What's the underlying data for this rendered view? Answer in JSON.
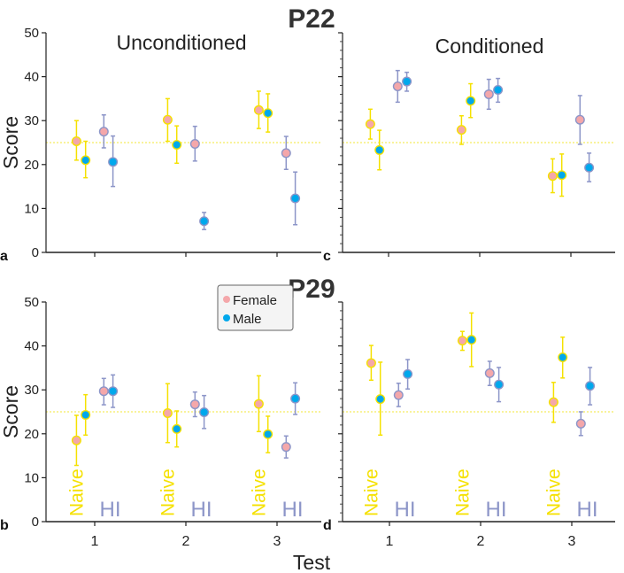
{
  "figure": {
    "row_titles": [
      "P22",
      "P29"
    ],
    "column_titles": [
      "Unconditioned",
      "Conditioned"
    ],
    "xlabel": "Test",
    "ylabel": "Score",
    "legend": [
      {
        "label": "Female",
        "color": "#f4a7aa"
      },
      {
        "label": "Male",
        "color": "#00a8ec"
      }
    ],
    "group_labels": [
      "Naive",
      "HI"
    ],
    "colors": {
      "naive": "#f5e100",
      "hi": "#8c95c8",
      "female": "#f4a7aa",
      "male": "#00a8ec",
      "chance_line": "#f7ef7a"
    }
  },
  "chart_data": [
    {
      "panel": "a",
      "type": "scatter",
      "row": "P22",
      "condition": "Unconditioned",
      "x_categories": [
        "1",
        "2",
        "3"
      ],
      "ylim": [
        0,
        50
      ],
      "yticks": [
        0,
        10,
        20,
        30,
        40,
        50
      ],
      "reference_line": 25,
      "error_bars": true,
      "series": [
        {
          "group": "Naive",
          "sex": "Female",
          "mean": [
            25.3,
            30.2,
            32.4
          ],
          "lo": [
            21.0,
            25.3,
            28.2
          ],
          "hi": [
            30.0,
            35.0,
            36.7
          ]
        },
        {
          "group": "Naive",
          "sex": "Male",
          "mean": [
            21.0,
            24.5,
            31.7
          ],
          "lo": [
            17.0,
            20.3,
            27.4
          ],
          "hi": [
            25.3,
            28.8,
            36.1
          ]
        },
        {
          "group": "HI",
          "sex": "Female",
          "mean": [
            27.5,
            24.7,
            22.6
          ],
          "lo": [
            23.8,
            20.8,
            18.9
          ],
          "hi": [
            31.3,
            28.7,
            26.4
          ]
        },
        {
          "group": "HI",
          "sex": "Male",
          "mean": [
            20.6,
            7.1,
            12.3
          ],
          "lo": [
            15.0,
            5.2,
            6.3
          ],
          "hi": [
            26.5,
            9.1,
            18.3
          ]
        }
      ]
    },
    {
      "panel": "c",
      "type": "scatter",
      "row": "P22",
      "condition": "Conditioned",
      "x_categories": [
        "1",
        "2",
        "3"
      ],
      "ylim": [
        0,
        50
      ],
      "yticks": [
        0,
        10,
        20,
        30,
        40,
        50
      ],
      "reference_line": 25,
      "error_bars": true,
      "series": [
        {
          "group": "Naive",
          "sex": "Female",
          "mean": [
            29.2,
            27.9,
            17.4
          ],
          "lo": [
            25.8,
            24.6,
            13.6
          ],
          "hi": [
            32.6,
            31.1,
            21.3
          ]
        },
        {
          "group": "Naive",
          "sex": "Male",
          "mean": [
            23.3,
            34.5,
            17.6
          ],
          "lo": [
            18.8,
            30.7,
            12.8
          ],
          "hi": [
            27.8,
            38.4,
            22.4
          ]
        },
        {
          "group": "HI",
          "sex": "Female",
          "mean": [
            37.8,
            36.0,
            30.2
          ],
          "lo": [
            34.2,
            32.6,
            24.6
          ],
          "hi": [
            41.4,
            39.4,
            35.7
          ]
        },
        {
          "group": "HI",
          "sex": "Male",
          "mean": [
            38.9,
            37.0,
            19.3
          ],
          "lo": [
            36.7,
            34.2,
            16.1
          ],
          "hi": [
            41.0,
            39.6,
            22.6
          ]
        }
      ]
    },
    {
      "panel": "b",
      "type": "scatter",
      "row": "P29",
      "condition": "Unconditioned",
      "x_categories": [
        "1",
        "2",
        "3"
      ],
      "ylim": [
        0,
        50
      ],
      "yticks": [
        0,
        10,
        20,
        30,
        40,
        50
      ],
      "reference_line": 25,
      "error_bars": true,
      "series": [
        {
          "group": "Naive",
          "sex": "Female",
          "mean": [
            18.5,
            24.7,
            26.8
          ],
          "lo": [
            12.8,
            18.0,
            20.5
          ],
          "hi": [
            24.2,
            31.4,
            33.2
          ]
        },
        {
          "group": "Naive",
          "sex": "Male",
          "mean": [
            24.3,
            21.1,
            19.9
          ],
          "lo": [
            19.7,
            17.0,
            15.7
          ],
          "hi": [
            28.9,
            25.2,
            24.0
          ]
        },
        {
          "group": "HI",
          "sex": "Female",
          "mean": [
            29.7,
            26.7,
            17.0
          ],
          "lo": [
            26.6,
            23.9,
            14.5
          ],
          "hi": [
            32.6,
            29.5,
            19.5
          ]
        },
        {
          "group": "HI",
          "sex": "Male",
          "mean": [
            29.7,
            24.9,
            28.0
          ],
          "lo": [
            26.0,
            21.2,
            24.4
          ],
          "hi": [
            33.4,
            28.7,
            31.6
          ]
        }
      ]
    },
    {
      "panel": "d",
      "type": "scatter",
      "row": "P29",
      "condition": "Conditioned",
      "x_categories": [
        "1",
        "2",
        "3"
      ],
      "ylim": [
        0,
        50
      ],
      "yticks": [
        0,
        10,
        20,
        30,
        40,
        50
      ],
      "reference_line": 25,
      "error_bars": true,
      "series": [
        {
          "group": "Naive",
          "sex": "Female",
          "mean": [
            36.1,
            41.2,
            27.2
          ],
          "lo": [
            32.2,
            39.0,
            22.6
          ],
          "hi": [
            40.1,
            43.3,
            31.7
          ]
        },
        {
          "group": "Naive",
          "sex": "Male",
          "mean": [
            27.9,
            41.4,
            37.4
          ],
          "lo": [
            19.7,
            35.3,
            32.7
          ],
          "hi": [
            36.3,
            47.5,
            42.0
          ]
        },
        {
          "group": "HI",
          "sex": "Female",
          "mean": [
            28.8,
            33.8,
            22.3
          ],
          "lo": [
            26.2,
            31.0,
            19.6
          ],
          "hi": [
            31.5,
            36.5,
            25.0
          ]
        },
        {
          "group": "HI",
          "sex": "Male",
          "mean": [
            33.6,
            31.2,
            30.9
          ],
          "lo": [
            30.2,
            27.3,
            26.6
          ],
          "hi": [
            36.9,
            35.1,
            35.1
          ]
        }
      ]
    }
  ]
}
